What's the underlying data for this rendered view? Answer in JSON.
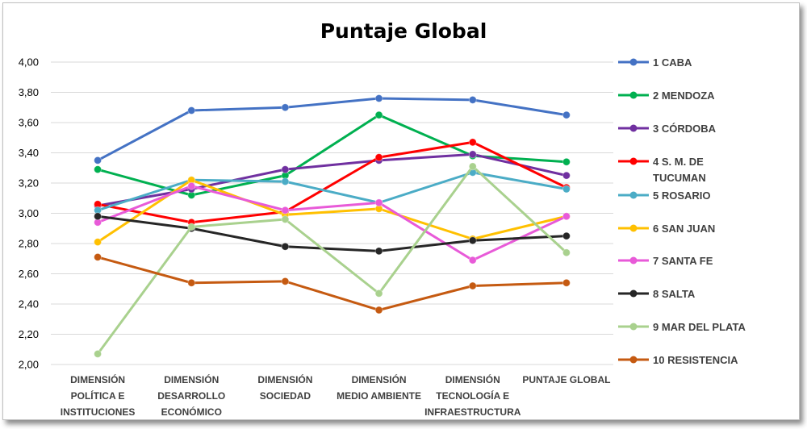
{
  "chart_data": {
    "type": "line",
    "title": "Puntaje Global",
    "xlabel": "",
    "ylabel": "",
    "ylim": [
      2.0,
      4.0
    ],
    "yticks": [
      "2,00",
      "2,20",
      "2,40",
      "2,60",
      "2,80",
      "3,00",
      "3,20",
      "3,40",
      "3,60",
      "3,80",
      "4,00"
    ],
    "grid": true,
    "legend_position": "right",
    "categories": [
      [
        "DIMENSIÓN",
        "POLÍTICA E",
        "INSTITUCIONES"
      ],
      [
        "DIMENSIÓN",
        "DESARROLLO",
        "ECONÓMICO"
      ],
      [
        "DIMENSIÓN",
        "SOCIEDAD"
      ],
      [
        "DIMENSIÓN",
        "MEDIO AMBIENTE"
      ],
      [
        "DIMENSIÓN",
        "TECNOLOGÍA E",
        "INFRAESTRUCTURA"
      ],
      [
        "PUNTAJE GLOBAL"
      ]
    ],
    "series": [
      {
        "name": "1 CABA",
        "legend": [
          "1 CABA"
        ],
        "color": "#4472C4",
        "values": [
          3.35,
          3.68,
          3.7,
          3.76,
          3.75,
          3.65
        ]
      },
      {
        "name": "2 MENDOZA",
        "legend": [
          "2 MENDOZA"
        ],
        "color": "#00B050",
        "values": [
          3.29,
          3.12,
          3.25,
          3.65,
          3.38,
          3.34
        ]
      },
      {
        "name": "3 CÓRDOBA",
        "legend": [
          "3 CÓRDOBA"
        ],
        "color": "#7030A0",
        "values": [
          3.05,
          3.16,
          3.29,
          3.35,
          3.39,
          3.25
        ]
      },
      {
        "name": "4 S. M. DE TUCUMAN",
        "legend": [
          "4 S. M.  DE",
          "TUCUMAN"
        ],
        "color": "#FF0000",
        "values": [
          3.06,
          2.94,
          3.01,
          3.37,
          3.47,
          3.17
        ]
      },
      {
        "name": "5 ROSARIO",
        "legend": [
          "5 ROSARIO"
        ],
        "color": "#4BACC6",
        "values": [
          3.02,
          3.22,
          3.21,
          3.07,
          3.27,
          3.16
        ]
      },
      {
        "name": "6 SAN JUAN",
        "legend": [
          "6 SAN JUAN"
        ],
        "color": "#FFC000",
        "values": [
          2.81,
          3.22,
          2.99,
          3.03,
          2.83,
          2.98
        ]
      },
      {
        "name": "7 SANTA FE",
        "legend": [
          "7 SANTA FE"
        ],
        "color": "#E85AD8",
        "values": [
          2.94,
          3.18,
          3.02,
          3.07,
          2.69,
          2.98
        ]
      },
      {
        "name": "8 SALTA",
        "legend": [
          "8 SALTA"
        ],
        "color": "#262626",
        "values": [
          2.98,
          2.9,
          2.78,
          2.75,
          2.82,
          2.85
        ]
      },
      {
        "name": "9 MAR DEL PLATA",
        "legend": [
          "9 MAR DEL PLATA"
        ],
        "color": "#A9D18E",
        "values": [
          2.07,
          2.91,
          2.96,
          2.47,
          3.31,
          2.74
        ]
      },
      {
        "name": "10 RESISTENCIA",
        "legend": [
          "10 RESISTENCIA"
        ],
        "color": "#C55A11",
        "values": [
          2.71,
          2.54,
          2.55,
          2.36,
          2.52,
          2.54
        ]
      }
    ]
  }
}
